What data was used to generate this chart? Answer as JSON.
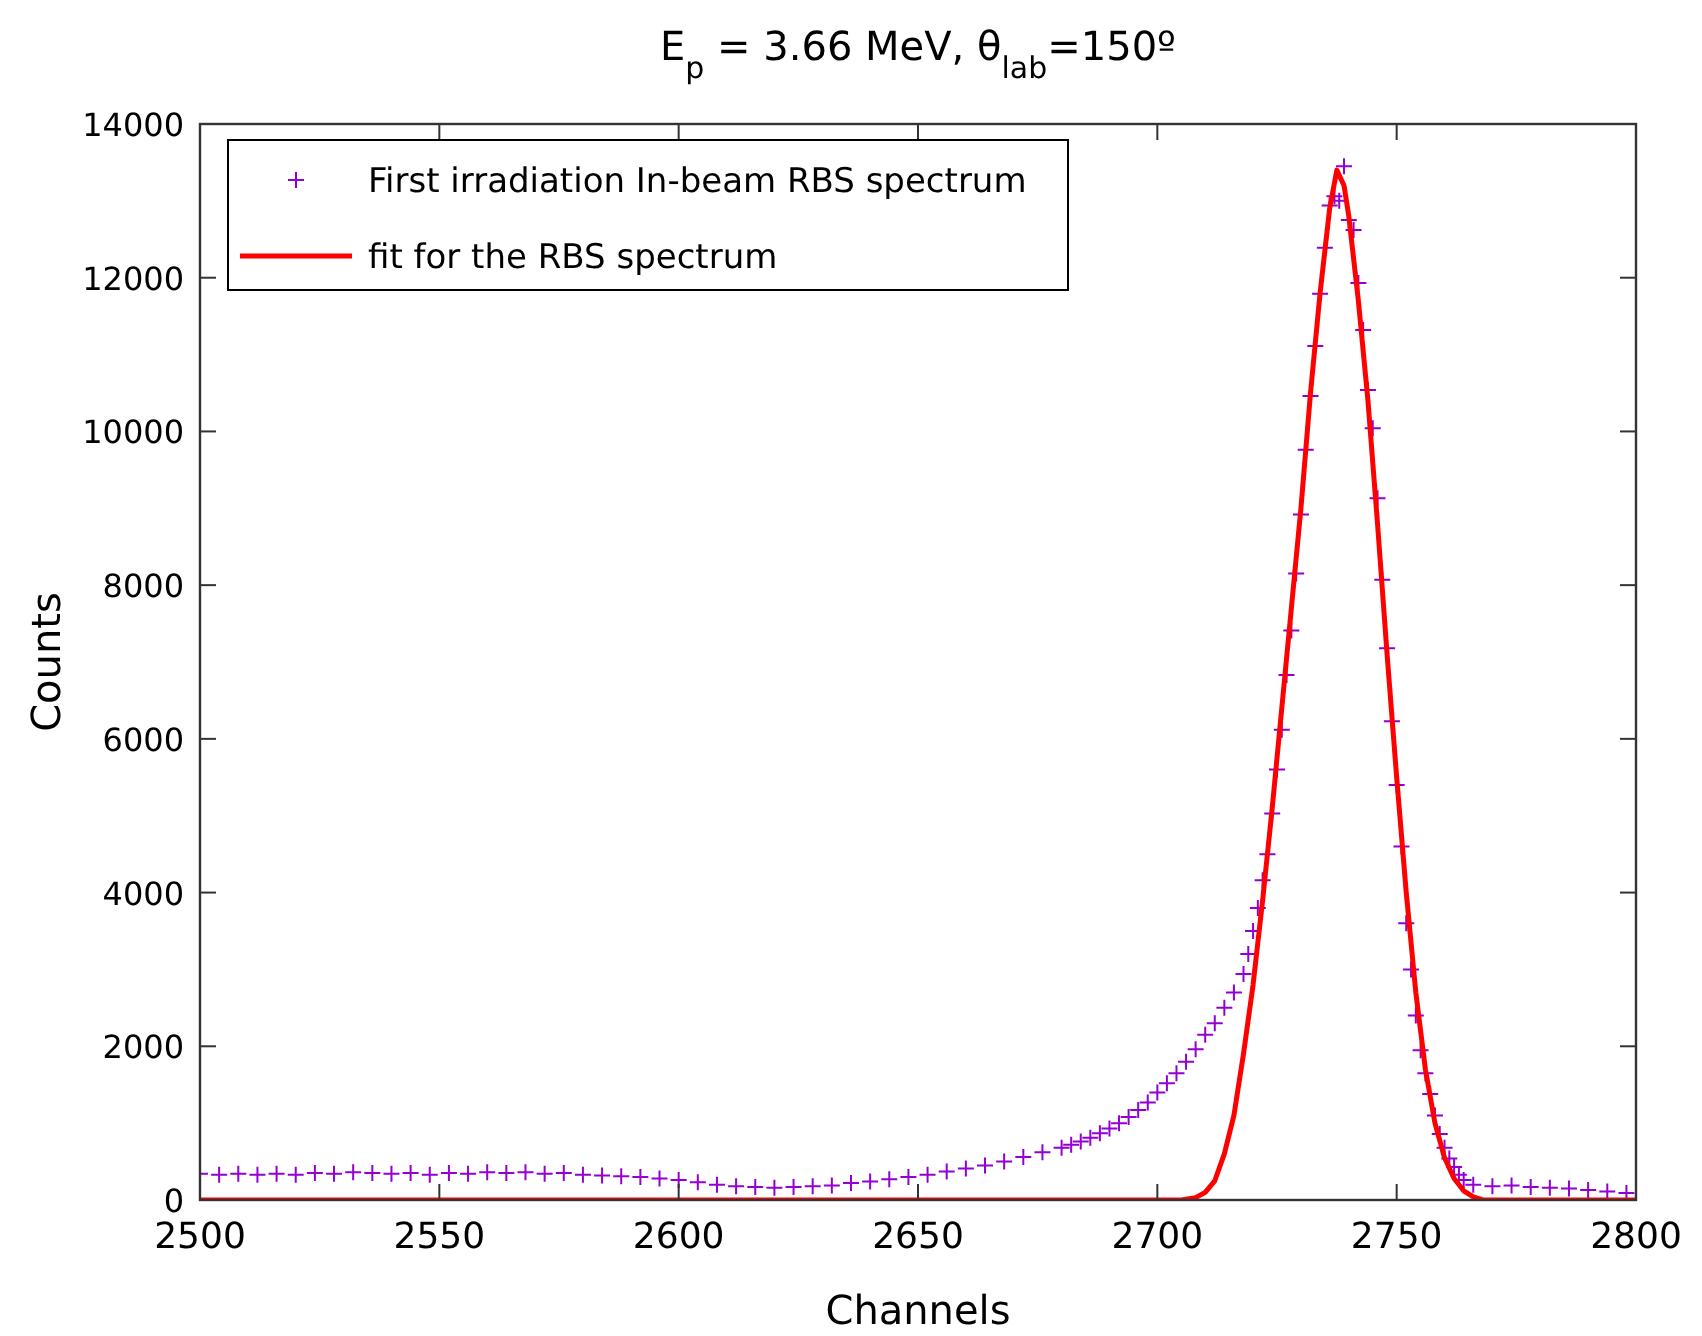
{
  "chart_data": {
    "type": "scatter",
    "title": "E$_{p}$ = 3.66 MeV, θ$_{lab}$=150º",
    "xlabel": "Channels",
    "ylabel": "Counts",
    "xlim": [
      2500,
      2800
    ],
    "xticks": [
      2500,
      2550,
      2600,
      2650,
      2700,
      2750,
      2800
    ],
    "ylim": [
      0,
      14000
    ],
    "yticks": [
      0,
      2000,
      4000,
      6000,
      8000,
      10000,
      12000,
      14000
    ],
    "grid": false,
    "legend": "top left",
    "series": [
      {
        "name": "First irradiation In-beam RBS spectrum",
        "type": "scatter",
        "marker": "cross",
        "color": "#9400d3",
        "x": [
          2500,
          2504,
          2508,
          2512,
          2516,
          2520,
          2524,
          2528,
          2532,
          2536,
          2540,
          2544,
          2548,
          2552,
          2556,
          2560,
          2564,
          2568,
          2572,
          2576,
          2580,
          2584,
          2588,
          2592,
          2596,
          2600,
          2604,
          2608,
          2612,
          2616,
          2620,
          2624,
          2628,
          2632,
          2636,
          2640,
          2644,
          2648,
          2652,
          2656,
          2660,
          2664,
          2668,
          2672,
          2676,
          2680,
          2682,
          2684,
          2686,
          2688,
          2690,
          2692,
          2694,
          2696,
          2698,
          2700,
          2702,
          2704,
          2706,
          2708,
          2710,
          2712,
          2714,
          2716,
          2718,
          2719,
          2720,
          2721,
          2722,
          2723,
          2724,
          2725,
          2726,
          2727,
          2728,
          2729,
          2730,
          2731,
          2732,
          2733,
          2734,
          2735,
          2736,
          2737,
          2738,
          2739,
          2740,
          2741,
          2742,
          2743,
          2744,
          2745,
          2746,
          2747,
          2748,
          2749,
          2750,
          2751,
          2752,
          2753,
          2754,
          2755,
          2756,
          2757,
          2758,
          2759,
          2760,
          2761,
          2762,
          2763,
          2764,
          2766,
          2770,
          2774,
          2778,
          2782,
          2786,
          2790,
          2794,
          2798
        ],
        "values": [
          340,
          330,
          340,
          330,
          340,
          330,
          350,
          340,
          360,
          350,
          340,
          350,
          330,
          350,
          340,
          360,
          350,
          360,
          340,
          350,
          330,
          320,
          310,
          300,
          280,
          260,
          230,
          200,
          180,
          170,
          160,
          170,
          180,
          190,
          220,
          240,
          270,
          300,
          330,
          370,
          410,
          450,
          500,
          560,
          620,
          680,
          720,
          760,
          810,
          870,
          930,
          1000,
          1080,
          1170,
          1270,
          1400,
          1520,
          1650,
          1800,
          1960,
          2150,
          2300,
          2500,
          2700,
          2940,
          3200,
          3500,
          3800,
          4160,
          4500,
          5030,
          5600,
          6120,
          6830,
          7410,
          8150,
          8920,
          9760,
          10460,
          11110,
          11790,
          12390,
          12940,
          13060,
          13000,
          13450,
          12750,
          12620,
          11930,
          11320,
          10540,
          10040,
          9130,
          8070,
          7180,
          6230,
          5400,
          4600,
          3600,
          3000,
          2400,
          1950,
          1650,
          1380,
          1100,
          860,
          680,
          540,
          430,
          330,
          260,
          200,
          180,
          190,
          170,
          160,
          150,
          130,
          110,
          90
        ]
      },
      {
        "name": "fit for the RBS spectrum",
        "type": "line",
        "line_style": "solid",
        "color": "#ff0000",
        "x": [
          2500,
          2705,
          2708,
          2710,
          2712,
          2714,
          2716,
          2718,
          2720,
          2722,
          2724,
          2726,
          2728,
          2730,
          2732,
          2734,
          2736,
          2737.5,
          2739,
          2740,
          2742,
          2744,
          2746,
          2748,
          2750,
          2752,
          2754,
          2756,
          2758,
          2760,
          2762,
          2764,
          2766,
          2768,
          2800
        ],
        "values": [
          0,
          0,
          30,
          100,
          250,
          600,
          1100,
          1900,
          2800,
          3900,
          5100,
          6400,
          7700,
          9000,
          10500,
          11800,
          12900,
          13400,
          13200,
          12800,
          11700,
          10400,
          8800,
          7100,
          5500,
          4000,
          2700,
          1700,
          1000,
          550,
          280,
          120,
          40,
          0,
          0
        ]
      }
    ]
  }
}
